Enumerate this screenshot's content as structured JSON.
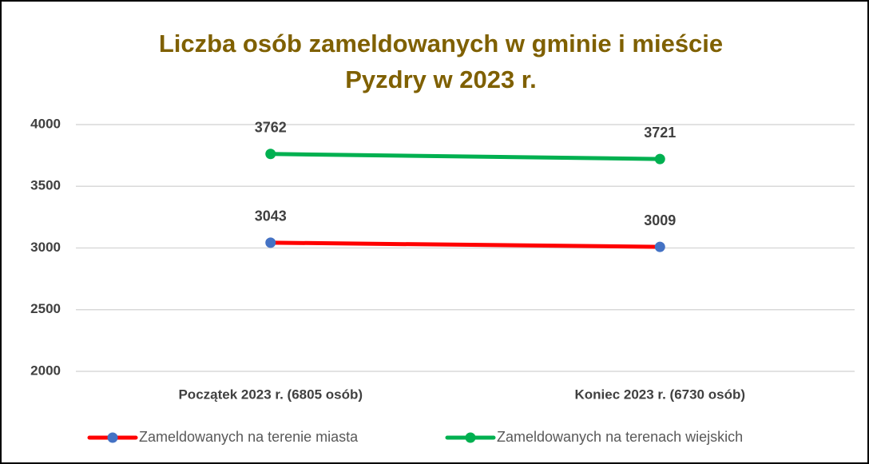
{
  "chart_data": {
    "type": "line",
    "title": [
      "Liczba osób zameldowanych w gminie i mieście",
      "Pyzdry  w 2023 r."
    ],
    "categories": [
      "Początek 2023 r. (6805 osób)",
      "Koniec 2023 r. (6730 osób)"
    ],
    "series": [
      {
        "name": "Zameldowanych na terenie miasta",
        "color": "#ff0000",
        "marker_color": "#4472c4",
        "values": [
          3043,
          3009
        ]
      },
      {
        "name": "Zameldowanych na terenach wiejskich",
        "color": "#00b050",
        "marker_color": "#00b050",
        "values": [
          3762,
          3721
        ]
      }
    ],
    "ylim": [
      2000,
      4000
    ],
    "yticks": [
      2000,
      2500,
      3000,
      3500,
      4000
    ],
    "grid": true,
    "legend": "bottom"
  }
}
